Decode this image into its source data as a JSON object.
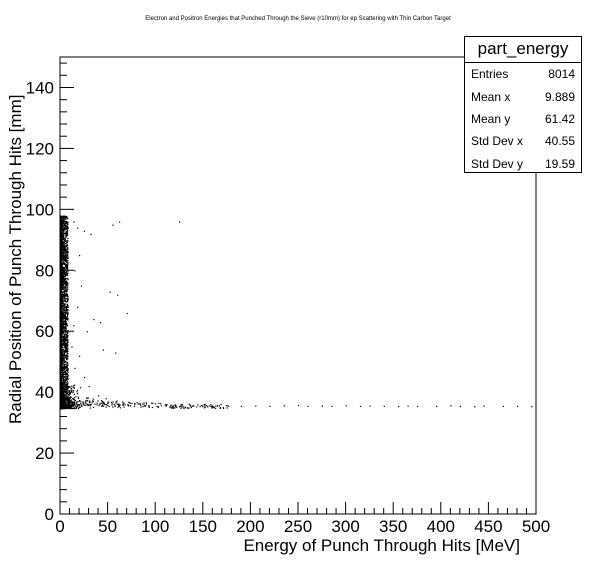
{
  "chart_data": {
    "type": "scatter",
    "title": "Electron and Positron Energies that Punched Through the Sieve (r10mm) for ep Scattering with Thin Carbon Target",
    "xlabel": "Energy of Punch Through Hits [MeV]",
    "ylabel": "Radial Position of Punch Through Hits [mm]",
    "xlim": [
      0,
      500
    ],
    "ylim": [
      0,
      150
    ],
    "x_ticks": [
      0,
      50,
      100,
      150,
      200,
      250,
      300,
      350,
      400,
      450,
      500
    ],
    "y_ticks": [
      0,
      20,
      40,
      60,
      80,
      100,
      120,
      140
    ],
    "x_tick_labels": [
      "0",
      "50",
      "100",
      "150",
      "200",
      "250",
      "300",
      "350",
      "400",
      "450",
      "500"
    ],
    "y_tick_labels": [
      "0",
      "20",
      "40",
      "60",
      "80",
      "100",
      "120",
      "140"
    ],
    "grid": false,
    "marker_color": "#000000",
    "dense_band": {
      "x_range": [
        0,
        8
      ],
      "y_range": [
        35,
        98
      ]
    },
    "tail_band": {
      "x_range": [
        8,
        500
      ],
      "y_approx": 35.5
    },
    "sparse_points": [
      [
        14,
        96
      ],
      [
        18,
        94
      ],
      [
        25,
        93
      ],
      [
        32,
        92
      ],
      [
        55,
        95
      ],
      [
        62,
        96
      ],
      [
        125,
        96
      ],
      [
        20,
        85
      ],
      [
        15,
        80
      ],
      [
        22,
        75
      ],
      [
        52,
        73
      ],
      [
        60,
        72
      ],
      [
        18,
        68
      ],
      [
        14,
        62
      ],
      [
        35,
        64
      ],
      [
        42,
        63
      ],
      [
        70,
        66
      ],
      [
        28,
        60
      ],
      [
        12,
        55
      ],
      [
        20,
        52
      ],
      [
        45,
        54
      ],
      [
        58,
        53
      ],
      [
        15,
        48
      ],
      [
        25,
        45
      ],
      [
        30,
        42
      ],
      [
        40,
        39
      ],
      [
        48,
        38
      ],
      [
        55,
        37
      ],
      [
        65,
        37
      ],
      [
        75,
        36.5
      ],
      [
        90,
        36.3
      ],
      [
        110,
        36
      ],
      [
        128,
        36
      ]
    ],
    "tail_points": [
      [
        140,
        35.6
      ],
      [
        160,
        35.6
      ],
      [
        175,
        35.7
      ],
      [
        190,
        35.5
      ],
      [
        205,
        35.6
      ],
      [
        220,
        35.5
      ],
      [
        235,
        35.7
      ],
      [
        250,
        35.8
      ],
      [
        260,
        35.5
      ],
      [
        275,
        35.6
      ],
      [
        285,
        35.5
      ],
      [
        300,
        35.7
      ],
      [
        315,
        35.5
      ],
      [
        325,
        35.6
      ],
      [
        340,
        35.5
      ],
      [
        355,
        35.4
      ],
      [
        365,
        35.6
      ],
      [
        375,
        35.5
      ],
      [
        395,
        35.5
      ],
      [
        410,
        35.7
      ],
      [
        420,
        35.5
      ],
      [
        435,
        35.4
      ],
      [
        445,
        35.6
      ],
      [
        465,
        35.5
      ],
      [
        480,
        35.5
      ],
      [
        495,
        35.4
      ]
    ],
    "stats_box": {
      "name": "part_energy",
      "rows": [
        {
          "label": "Entries",
          "value": "8014"
        },
        {
          "label": "Mean x",
          "value": "9.889"
        },
        {
          "label": "Mean y",
          "value": "61.42"
        },
        {
          "label": "Std Dev x",
          "value": "40.55"
        },
        {
          "label": "Std Dev y",
          "value": "19.59"
        }
      ]
    }
  }
}
